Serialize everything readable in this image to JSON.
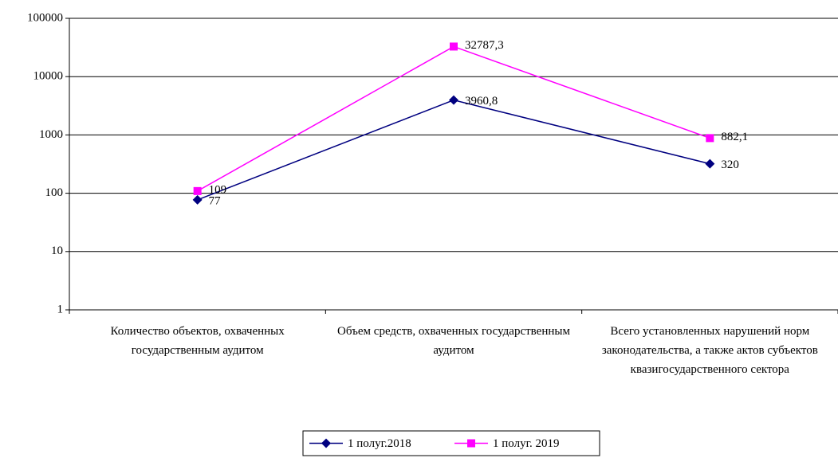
{
  "chart_data": {
    "type": "line",
    "categories": [
      "Количество объектов, охваченных государственным аудитом",
      "Объем средств, охваченных государственным аудитом",
      "Всего установленных нарушений норм законодательства, а также актов субъектов квазигосударственного сектора"
    ],
    "series": [
      {
        "name": "1 полуг.2018",
        "color": "#000080",
        "marker": "diamond",
        "values": [
          77,
          3960.8,
          320
        ],
        "value_labels": [
          "77",
          "3960,8",
          "320"
        ]
      },
      {
        "name": "1 полуг. 2019",
        "color": "#ff00ff",
        "marker": "square",
        "values": [
          109,
          32787.3,
          882.1
        ],
        "value_labels": [
          "109",
          "32787,3",
          "882,1"
        ]
      }
    ],
    "ylim": [
      1,
      100000
    ],
    "yticks": [
      1,
      10,
      100,
      1000,
      10000,
      100000
    ],
    "log_scale": true,
    "grid": true,
    "legend": "bottom"
  }
}
